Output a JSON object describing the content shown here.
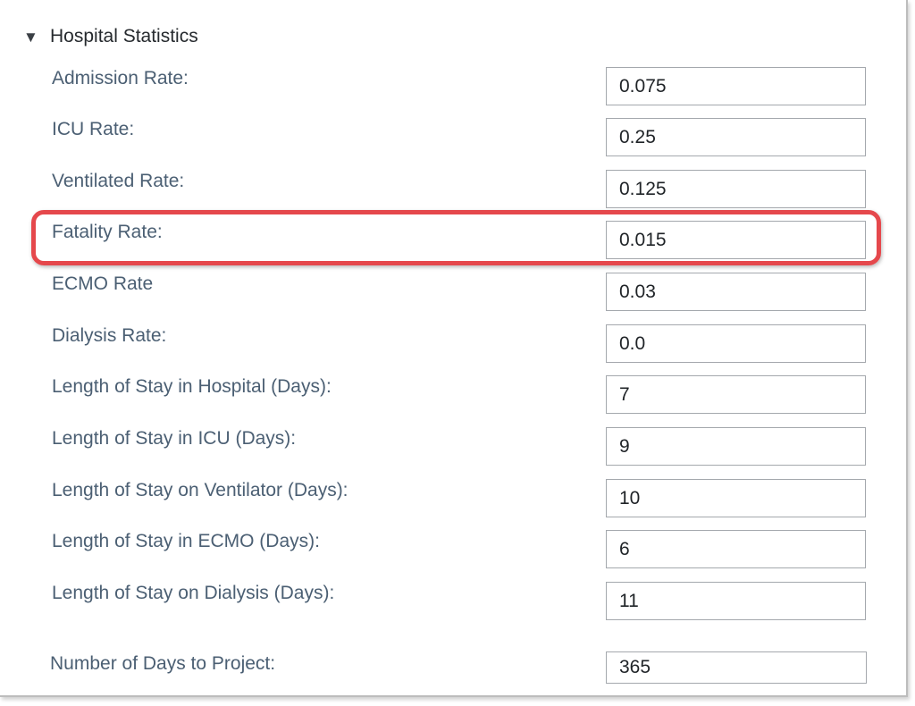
{
  "section": {
    "title": "Hospital Statistics",
    "toggle_icon": "caret-down-icon",
    "toggle_glyph": "▼",
    "expanded": true
  },
  "fields": [
    {
      "label": "Admission Rate:",
      "value": "0.075"
    },
    {
      "label": "ICU Rate:",
      "value": "0.25"
    },
    {
      "label": "Ventilated Rate:",
      "value": "0.125"
    },
    {
      "label": "Fatality Rate:",
      "value": "0.015"
    },
    {
      "label": "ECMO Rate",
      "value": "0.03"
    },
    {
      "label": "Dialysis Rate:",
      "value": "0.0"
    },
    {
      "label": "Length of Stay in Hospital (Days):",
      "value": "7"
    },
    {
      "label": "Length of Stay in ICU (Days):",
      "value": "9"
    },
    {
      "label": "Length of Stay on Ventilator (Days):",
      "value": "10"
    },
    {
      "label": "Length of Stay in ECMO (Days):",
      "value": "6"
    },
    {
      "label": "Length of Stay on Dialysis (Days):",
      "value": "11"
    },
    {
      "label": "Number of Days to Project:",
      "value": "365"
    }
  ],
  "highlight": {
    "field_label": "Fatality Rate:",
    "color": "#e5484c"
  },
  "colors": {
    "label_text": "#4b5f73",
    "input_border": "#a4a8ad",
    "title_text": "#262a2e"
  }
}
